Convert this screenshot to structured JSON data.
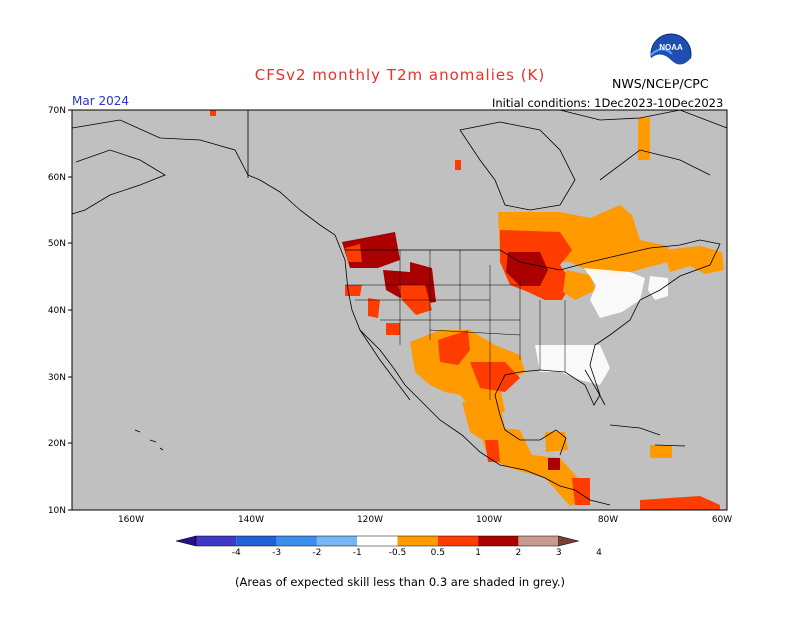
{
  "title": "CFSv2 monthly T2m anomalies (K)",
  "agency": "NWS/NCEP/CPC",
  "month": "Mar 2024",
  "initial_conditions": "Initial conditions: 1Dec2023-10Dec2023",
  "footnote": "(Areas of expected skill less than 0.3 are shaded in grey.)",
  "map": {
    "lat_labels": [
      "70N",
      "60N",
      "50N",
      "40N",
      "30N",
      "20N",
      "10N"
    ],
    "lon_labels": [
      "160W",
      "140W",
      "120W",
      "100W",
      "80W",
      "60W"
    ],
    "colors": {
      "background_grey": "#c0c0c0",
      "coast": "#000000",
      "no_skill_white": "#ffffff"
    }
  },
  "colorbar": {
    "labels": [
      "-4",
      "-3",
      "-2",
      "-1",
      "-0.5",
      "0.5",
      "1",
      "2",
      "3",
      "4"
    ],
    "colors": [
      "#2b0f8c",
      "#3d3bc6",
      "#1f63d6",
      "#3a90ec",
      "#76b6f5",
      "#ffffff",
      "#ff9a00",
      "#ff3c00",
      "#ab0000",
      "#c89a90",
      "#7a3f32"
    ]
  },
  "logo_text": "NOAA"
}
